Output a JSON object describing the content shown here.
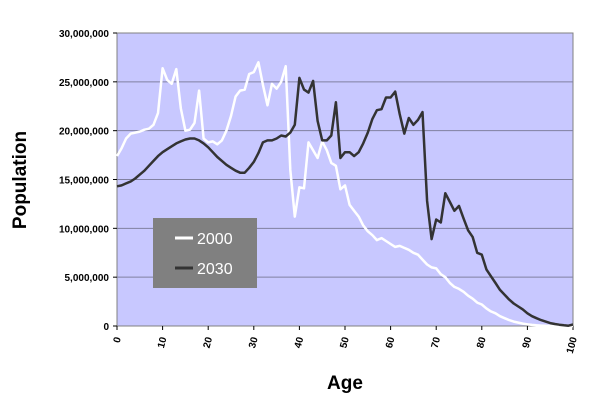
{
  "chart_data": {
    "type": "line",
    "xlabel": "Age",
    "ylabel": "Population",
    "xlim": [
      0,
      100
    ],
    "ylim": [
      0,
      30000000
    ],
    "x_ticks": [
      "0",
      "10",
      "20",
      "30",
      "40",
      "50",
      "60",
      "70",
      "80",
      "90",
      "100"
    ],
    "y_ticks": [
      "0",
      "5,000,000",
      "10,000,000",
      "15,000,000",
      "20,000,000",
      "25,000,000",
      "30,000,000"
    ],
    "grid": "horizontal",
    "legend_position": "lower-left",
    "colors": {
      "plot_background": "#c8c8ff",
      "legend_background": "#808080"
    },
    "series": [
      {
        "name": "2000",
        "color": "#ffffff",
        "x": [
          0,
          1,
          2,
          3,
          4,
          5,
          6,
          7,
          8,
          9,
          10,
          11,
          12,
          13,
          14,
          15,
          16,
          17,
          18,
          19,
          20,
          21,
          22,
          23,
          24,
          25,
          26,
          27,
          28,
          29,
          30,
          31,
          32,
          33,
          34,
          35,
          36,
          37,
          38,
          39,
          40,
          41,
          42,
          43,
          44,
          45,
          46,
          47,
          48,
          49,
          50,
          51,
          52,
          53,
          54,
          55,
          56,
          57,
          58,
          59,
          60,
          61,
          62,
          63,
          64,
          65,
          66,
          67,
          68,
          69,
          70,
          71,
          72,
          73,
          74,
          75,
          76,
          77,
          78,
          79,
          80,
          81,
          82,
          83,
          84,
          85,
          86,
          87,
          88,
          89,
          90,
          91,
          92,
          93,
          94,
          95,
          96,
          97,
          98,
          99,
          100
        ],
        "values": [
          17400000,
          18200000,
          19200000,
          19700000,
          19800000,
          19900000,
          20100000,
          20200000,
          20600000,
          21800000,
          26400000,
          25200000,
          24800000,
          26300000,
          22300000,
          20000000,
          20100000,
          20800000,
          24100000,
          19200000,
          18800000,
          18900000,
          18600000,
          19000000,
          20000000,
          21500000,
          23500000,
          24100000,
          24200000,
          25800000,
          26000000,
          27000000,
          24700000,
          22600000,
          24800000,
          24300000,
          25000000,
          26600000,
          16000000,
          11200000,
          14200000,
          14100000,
          18800000,
          18000000,
          17200000,
          18900000,
          18000000,
          16700000,
          16400000,
          14000000,
          14400000,
          12400000,
          11800000,
          11200000,
          10300000,
          9700000,
          9300000,
          8800000,
          9000000,
          8700000,
          8400000,
          8100000,
          8200000,
          8000000,
          7800000,
          7500000,
          7300000,
          6800000,
          6300000,
          6000000,
          5900000,
          5300000,
          5000000,
          4400000,
          4000000,
          3800000,
          3500000,
          3100000,
          2800000,
          2400000,
          2200000,
          1800000,
          1500000,
          1300000,
          1000000,
          800000,
          600000,
          450000,
          350000,
          250000,
          170000,
          110000,
          70000,
          40000,
          25000,
          15000,
          8000,
          4000,
          2000,
          1000,
          500
        ]
      },
      {
        "name": "2030",
        "color": "#333333",
        "x": [
          0,
          1,
          2,
          3,
          4,
          5,
          6,
          7,
          8,
          9,
          10,
          11,
          12,
          13,
          14,
          15,
          16,
          17,
          18,
          19,
          20,
          21,
          22,
          23,
          24,
          25,
          26,
          27,
          28,
          29,
          30,
          31,
          32,
          33,
          34,
          35,
          36,
          37,
          38,
          39,
          40,
          41,
          42,
          43,
          44,
          45,
          46,
          47,
          48,
          49,
          50,
          51,
          52,
          53,
          54,
          55,
          56,
          57,
          58,
          59,
          60,
          61,
          62,
          63,
          64,
          65,
          66,
          67,
          68,
          69,
          70,
          71,
          72,
          73,
          74,
          75,
          76,
          77,
          78,
          79,
          80,
          81,
          82,
          83,
          84,
          85,
          86,
          87,
          88,
          89,
          90,
          91,
          92,
          93,
          94,
          95,
          96,
          97,
          98,
          99,
          100
        ],
        "values": [
          14300000,
          14400000,
          14600000,
          14800000,
          15100000,
          15500000,
          15900000,
          16400000,
          16900000,
          17400000,
          17800000,
          18100000,
          18400000,
          18700000,
          18900000,
          19100000,
          19200000,
          19200000,
          19000000,
          18700000,
          18300000,
          17800000,
          17300000,
          16900000,
          16500000,
          16200000,
          15900000,
          15700000,
          15700000,
          16200000,
          16800000,
          17700000,
          18800000,
          19000000,
          19000000,
          19200000,
          19500000,
          19400000,
          19800000,
          20600000,
          25400000,
          24200000,
          23900000,
          25100000,
          21000000,
          19000000,
          19000000,
          19500000,
          22900000,
          17200000,
          17800000,
          17800000,
          17400000,
          17800000,
          18700000,
          19800000,
          21200000,
          22100000,
          22200000,
          23400000,
          23400000,
          24000000,
          21700000,
          19700000,
          21300000,
          20600000,
          21100000,
          21900000,
          12800000,
          8900000,
          10900000,
          10600000,
          13600000,
          12700000,
          11800000,
          12300000,
          11000000,
          9800000,
          9100000,
          7500000,
          7300000,
          5800000,
          5100000,
          4400000,
          3700000,
          3200000,
          2700000,
          2300000,
          2000000,
          1700000,
          1300000,
          1000000,
          800000,
          600000,
          450000,
          300000,
          200000,
          130000,
          70000,
          30000,
          150000
        ]
      }
    ]
  }
}
